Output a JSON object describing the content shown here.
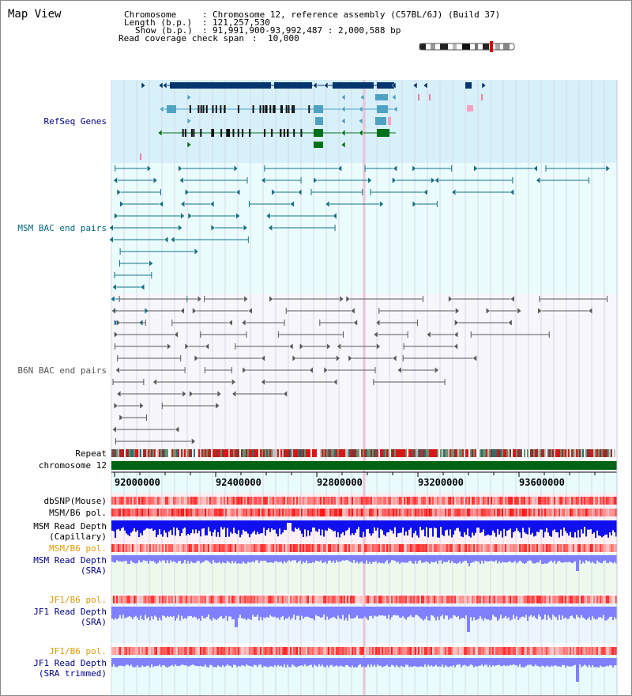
{
  "title": "Map View",
  "header": {
    "chromosome_key": "Chromosome",
    "chromosome_value": "Chromosome 12, reference assembly (C57BL/6J) (Build 37)",
    "length_key": "Length (b.p.)",
    "length_value": "121,257,530",
    "show_key": "Show (b.p.)",
    "show_value": "91,991,900-93,992,487 : 2,000,588 bp",
    "coverage_key": "Read coverage check span",
    "coverage_value": "10,000"
  },
  "tracks": {
    "refseq": "RefSeq Genes",
    "msm_bac": "MSM BAC end pairs",
    "b6n_bac": "B6N BAC end pairs",
    "repeat": "Repeat",
    "chromosome": "chromosome 12",
    "dbsnp": "dbSNP(Mouse)",
    "msm_b6_pol_1": "MSM/B6 pol.",
    "msm_depth_cap": "MSM Read Depth\n(Capillary)",
    "msm_b6_pol_2": "MSM/B6 pol.",
    "msm_depth_sra": "MSM Read Depth\n(SRA)",
    "jf1_b6_pol_1": "JF1/B6 pol.",
    "jf1_depth_sra": "JF1 Read Depth\n(SRA)",
    "jf1_b6_pol_2": "JF1/B6 pol.",
    "jf1_depth_trim": "JF1 Read Depth\n(SRA trimmed)"
  },
  "axis": {
    "ticks": [
      "92000000",
      "92400000",
      "92800000",
      "93200000",
      "93600000"
    ]
  },
  "colors": {
    "refseq_bg": "#d7f0fa",
    "msm_bg": "#eafcfc",
    "b6n_bg": "#f6f6fb",
    "refseq_gene": "#05356e",
    "refseq_alt": "#4fa2c2",
    "refseq_green": "#00701a",
    "msm_bac": "#13708a",
    "b6n_bac": "#5a5a5a",
    "chromosome_bar": "#006414",
    "depth_capillary": "#1010ee",
    "depth_sra": "#8080ff"
  }
}
